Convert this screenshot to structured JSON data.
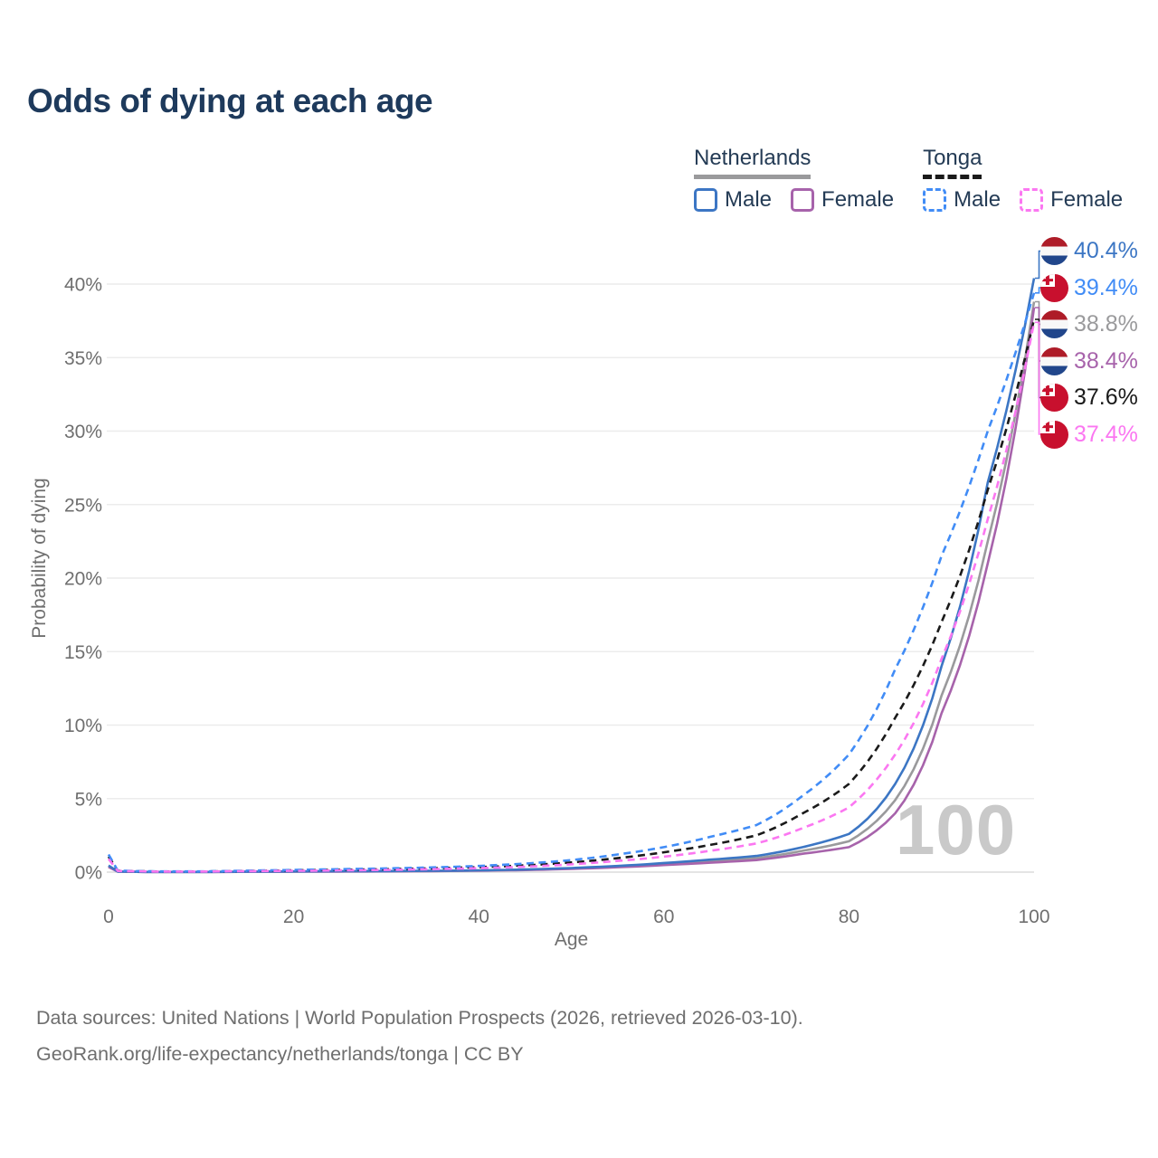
{
  "title": "Odds of dying at each age",
  "colors": {
    "title": "#1E3A5C",
    "legend_text": "#243B55",
    "axis_text": "#6F6F6F",
    "grid": "#ECECEC",
    "baseline": "#DBDBDB",
    "watermark": "#C9C9C9",
    "footer_text": "#6E6E6E",
    "background": "#FFFFFF"
  },
  "legend": {
    "groups": [
      {
        "country": "Netherlands",
        "line_style": "solid",
        "underline_color": "#9A9A9C",
        "items": [
          {
            "label": "Male",
            "color": "#3C76C4"
          },
          {
            "label": "Female",
            "color": "#A763AB"
          }
        ]
      },
      {
        "country": "Tonga",
        "line_style": "dashed",
        "underline_color": "#1A1A1A",
        "items": [
          {
            "label": "Male",
            "color": "#418CF6"
          },
          {
            "label": "Female",
            "color": "#FB77F1"
          }
        ]
      }
    ]
  },
  "chart_data": {
    "type": "line",
    "title": "Odds of dying at each age",
    "xlabel": "Age",
    "ylabel": "Probability of dying",
    "xlim": [
      0,
      100
    ],
    "ylim": [
      0,
      40
    ],
    "x_ticks": [
      "0",
      "20",
      "40",
      "60",
      "80",
      "100"
    ],
    "y_ticks": [
      "0%",
      "5%",
      "10%",
      "15%",
      "20%",
      "25%",
      "30%",
      "35%",
      "40%"
    ],
    "grid": "horizontal-only",
    "legend_position": "top-right",
    "watermark": "100",
    "x": [
      0,
      1,
      5,
      10,
      15,
      20,
      25,
      30,
      35,
      40,
      45,
      50,
      55,
      60,
      65,
      70,
      75,
      80,
      85,
      90,
      95,
      100
    ],
    "series": [
      {
        "name": "Netherlands Both sexes",
        "country": "Netherlands",
        "sex": "Both",
        "flag": "nl",
        "color": "#9A9A9C",
        "dashed": false,
        "end_label": "38.8%",
        "values": [
          0.4,
          0.035,
          0.01,
          0.01,
          0.025,
          0.04,
          0.05,
          0.06,
          0.08,
          0.11,
          0.16,
          0.25,
          0.37,
          0.55,
          0.74,
          0.95,
          1.45,
          2.1,
          4.9,
          12.0,
          22.5,
          38.8
        ]
      },
      {
        "name": "Netherlands Female",
        "country": "Netherlands",
        "sex": "Female",
        "flag": "nl",
        "color": "#A763AB",
        "dashed": false,
        "end_label": "38.4%",
        "values": [
          0.35,
          0.03,
          0.01,
          0.01,
          0.02,
          0.03,
          0.04,
          0.05,
          0.07,
          0.1,
          0.14,
          0.22,
          0.33,
          0.48,
          0.64,
          0.82,
          1.25,
          1.7,
          4.0,
          10.8,
          21.0,
          38.4
        ]
      },
      {
        "name": "Netherlands Male",
        "country": "Netherlands",
        "sex": "Male",
        "flag": "nl",
        "color": "#3C76C4",
        "dashed": false,
        "end_label": "40.4%",
        "values": [
          0.45,
          0.04,
          0.01,
          0.01,
          0.03,
          0.05,
          0.06,
          0.07,
          0.09,
          0.12,
          0.18,
          0.28,
          0.42,
          0.62,
          0.85,
          1.1,
          1.7,
          2.6,
          6.0,
          14.0,
          26.5,
          40.4
        ]
      },
      {
        "name": "Tonga Both sexes",
        "country": "Tonga",
        "sex": "Both",
        "flag": "to",
        "color": "#1A1A1A",
        "dashed": true,
        "end_label": "37.6%",
        "values": [
          1.05,
          0.09,
          0.045,
          0.045,
          0.08,
          0.12,
          0.16,
          0.2,
          0.26,
          0.34,
          0.46,
          0.66,
          0.95,
          1.35,
          1.85,
          2.5,
          4.0,
          6.0,
          10.5,
          17.0,
          26.0,
          37.6
        ]
      },
      {
        "name": "Tonga Male",
        "country": "Tonga",
        "sex": "Male",
        "flag": "to",
        "color": "#418CF6",
        "dashed": true,
        "end_label": "39.4%",
        "values": [
          1.2,
          0.1,
          0.05,
          0.05,
          0.1,
          0.15,
          0.2,
          0.25,
          0.32,
          0.42,
          0.58,
          0.82,
          1.2,
          1.7,
          2.4,
          3.2,
          5.2,
          8.0,
          13.8,
          21.5,
          30.0,
          39.4
        ]
      },
      {
        "name": "Tonga Female",
        "country": "Tonga",
        "sex": "Female",
        "flag": "to",
        "color": "#FB77F1",
        "dashed": true,
        "end_label": "37.4%",
        "values": [
          0.9,
          0.08,
          0.04,
          0.04,
          0.065,
          0.09,
          0.12,
          0.15,
          0.2,
          0.27,
          0.37,
          0.53,
          0.76,
          1.05,
          1.45,
          1.95,
          3.0,
          4.4,
          8.0,
          14.5,
          24.0,
          37.4
        ]
      }
    ]
  },
  "flags": {
    "nl": {
      "name": "Netherlands flag",
      "red": "#AE1C28",
      "white": "#F8F8F8",
      "blue": "#21468B"
    },
    "to": {
      "name": "Tonga flag",
      "red": "#C8102E",
      "white": "#FFFFFF"
    }
  },
  "footer": {
    "line1": "Data sources: United Nations | World Population Prospects (2026, retrieved 2026-03-10).",
    "line2": "GeoRank.org/life-expectancy/netherlands/tonga | CC BY"
  }
}
